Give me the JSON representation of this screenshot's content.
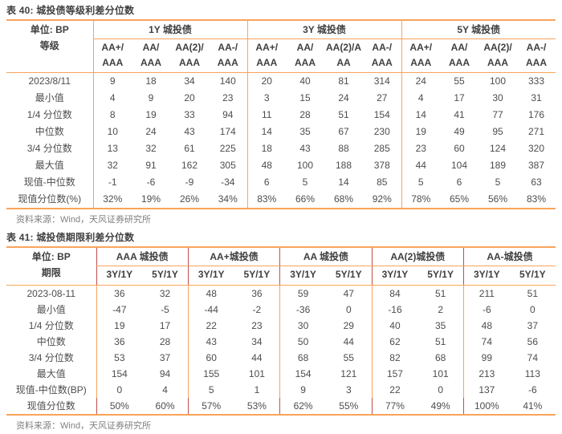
{
  "colors": {
    "accent_orange": "#F8A45B",
    "accent_crimson": "#C0504D",
    "negative_red": "#F87A6E",
    "title_text": "#3F3F3F",
    "body_text": "#4D4D4D",
    "source_text": "#7F7F7F"
  },
  "table40": {
    "title": "表 40: 城投债等级利差分位数",
    "unit_label": "单位: BP",
    "row_header_label": "等级",
    "groups": [
      {
        "label": "1Y 城投债",
        "subcols": [
          "AA+/\nAAA",
          "AA/\nAAA",
          "AA(2)/\nAAA",
          "AA-/\nAAA"
        ]
      },
      {
        "label": "3Y 城投债",
        "subcols": [
          "AA+/\nAAA",
          "AA/\nAAA",
          "AA(2)/A\nAA",
          "AA-/\nAAA"
        ]
      },
      {
        "label": "5Y 城投债",
        "subcols": [
          "AA+/\nAAA",
          "AA/\nAAA",
          "AA(2)/\nAAA",
          "AA-/\nAAA"
        ]
      }
    ],
    "rows": [
      {
        "label": "2023/8/11",
        "values": [
          "9",
          "18",
          "34",
          "140",
          "20",
          "40",
          "81",
          "314",
          "24",
          "55",
          "100",
          "333"
        ]
      },
      {
        "label": "最小值",
        "values": [
          "4",
          "9",
          "20",
          "23",
          "3",
          "15",
          "24",
          "27",
          "4",
          "17",
          "30",
          "31"
        ]
      },
      {
        "label": "1/4 分位数",
        "values": [
          "8",
          "19",
          "33",
          "94",
          "11",
          "28",
          "51",
          "154",
          "14",
          "41",
          "77",
          "176"
        ]
      },
      {
        "label": "中位数",
        "values": [
          "10",
          "24",
          "43",
          "174",
          "14",
          "35",
          "67",
          "230",
          "19",
          "49",
          "95",
          "271"
        ]
      },
      {
        "label": "3/4 分位数",
        "values": [
          "13",
          "32",
          "61",
          "225",
          "18",
          "43",
          "88",
          "285",
          "23",
          "60",
          "124",
          "320"
        ]
      },
      {
        "label": "最大值",
        "values": [
          "32",
          "91",
          "162",
          "305",
          "48",
          "100",
          "188",
          "378",
          "44",
          "104",
          "189",
          "387"
        ]
      },
      {
        "label": "现值-中位数",
        "values": [
          "-1",
          "-6",
          "-9",
          "-34",
          "6",
          "5",
          "14",
          "85",
          "5",
          "6",
          "5",
          "63"
        ],
        "red_negatives": true
      },
      {
        "label": "现值分位数(%)",
        "values": [
          "32%",
          "19%",
          "26%",
          "34%",
          "83%",
          "66%",
          "68%",
          "92%",
          "78%",
          "65%",
          "56%",
          "83%"
        ]
      }
    ],
    "source": "资料来源：Wind，天风证券研究所"
  },
  "table41": {
    "title": "表 41: 城投债期限利差分位数",
    "unit_label": "单位: BP",
    "row_header_label": "期限",
    "groups": [
      {
        "label": "AAA 城投债",
        "subcols": [
          "3Y/1Y",
          "5Y/1Y"
        ]
      },
      {
        "label": "AA+城投债",
        "subcols": [
          "3Y/1Y",
          "5Y/1Y"
        ]
      },
      {
        "label": "AA 城投债",
        "subcols": [
          "3Y/1Y",
          "5Y/1Y"
        ]
      },
      {
        "label": "AA(2)城投债",
        "subcols": [
          "3Y/1Y",
          "5Y/1Y"
        ]
      },
      {
        "label": "AA-城投债",
        "subcols": [
          "3Y/1Y",
          "5Y/1Y"
        ]
      }
    ],
    "rows": [
      {
        "label": "2023-08-11",
        "values": [
          "36",
          "32",
          "48",
          "36",
          "59",
          "47",
          "84",
          "51",
          "211",
          "51"
        ]
      },
      {
        "label": "最小值",
        "values": [
          "-47",
          "-5",
          "-44",
          "-2",
          "-36",
          "0",
          "-16",
          "2",
          "-6",
          "0"
        ]
      },
      {
        "label": "1/4 分位数",
        "values": [
          "19",
          "17",
          "22",
          "23",
          "30",
          "29",
          "40",
          "35",
          "48",
          "37"
        ]
      },
      {
        "label": "中位数",
        "values": [
          "36",
          "28",
          "43",
          "34",
          "50",
          "44",
          "62",
          "51",
          "74",
          "56"
        ]
      },
      {
        "label": "3/4 分位数",
        "values": [
          "53",
          "37",
          "60",
          "44",
          "68",
          "55",
          "82",
          "68",
          "99",
          "74"
        ]
      },
      {
        "label": "最大值",
        "values": [
          "154",
          "94",
          "155",
          "101",
          "154",
          "121",
          "157",
          "101",
          "213",
          "113"
        ]
      },
      {
        "label": "现值-中位数(BP)",
        "values": [
          "0",
          "4",
          "5",
          "1",
          "9",
          "3",
          "22",
          "0",
          "137",
          "-6"
        ],
        "red_negatives": true
      },
      {
        "label": "现值分位数",
        "values": [
          "50%",
          "60%",
          "57%",
          "53%",
          "62%",
          "55%",
          "77%",
          "49%",
          "100%",
          "41%"
        ]
      }
    ],
    "source": "资料来源：Wind，天风证券研究所"
  }
}
